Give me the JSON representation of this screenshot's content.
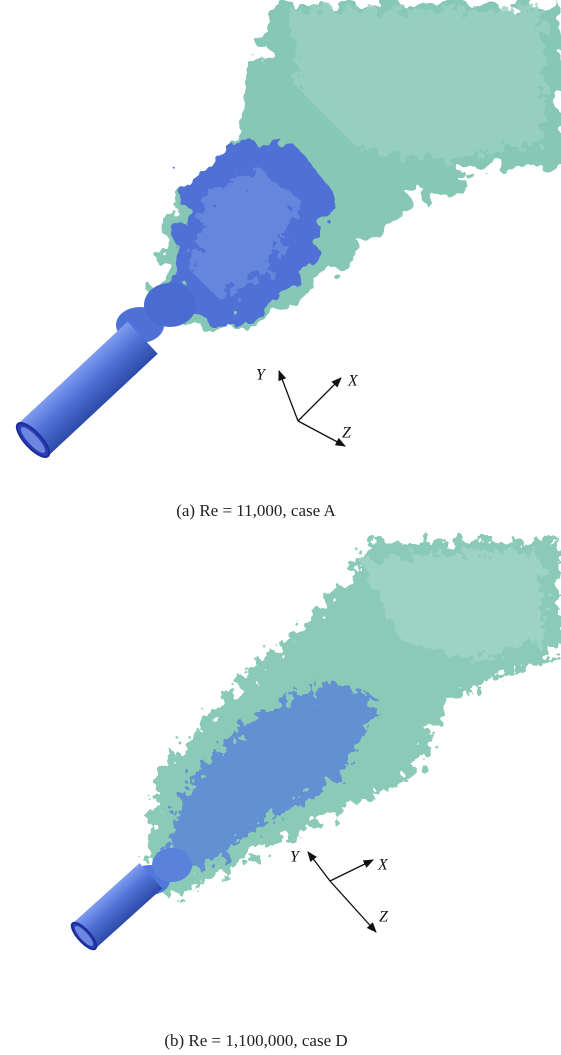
{
  "panels": [
    {
      "caption": "(a)  Re = 11,000, case A",
      "axes": {
        "y": "Y",
        "x": "X",
        "z": "Z"
      }
    },
    {
      "caption": "(b)  Re = 1,100,000, case D",
      "axes": {
        "y": "Y",
        "x": "X",
        "z": "Z"
      }
    }
  ]
}
